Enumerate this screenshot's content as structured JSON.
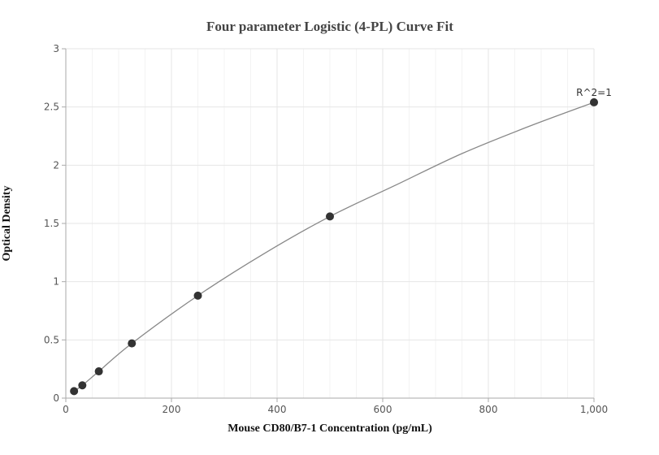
{
  "chart_data": {
    "type": "scatter",
    "title": "Four parameter Logistic (4-PL) Curve Fit",
    "xlabel": "Mouse CD80/B7-1 Concentration (pg/mL)",
    "ylabel": "Optical Density",
    "xlim": [
      0,
      1000
    ],
    "ylim": [
      0,
      3
    ],
    "x_ticks": [
      0,
      200,
      400,
      600,
      800,
      1000
    ],
    "x_tick_labels": [
      "0",
      "200",
      "400",
      "600",
      "800",
      "1,000"
    ],
    "y_ticks": [
      0,
      0.5,
      1,
      1.5,
      2,
      2.5,
      3
    ],
    "y_tick_labels": [
      "0",
      "0.5",
      "1",
      "1.5",
      "2",
      "2.5",
      "3"
    ],
    "grid": true,
    "series": [
      {
        "points": [
          {
            "x": 15.6,
            "y": 0.06
          },
          {
            "x": 31.25,
            "y": 0.11
          },
          {
            "x": 62.5,
            "y": 0.23
          },
          {
            "x": 125,
            "y": 0.47
          },
          {
            "x": 250,
            "y": 0.88
          },
          {
            "x": 500,
            "y": 1.56
          },
          {
            "x": 1000,
            "y": 2.54
          }
        ],
        "color": "#333333"
      }
    ],
    "fit_curve": {
      "type": "4-PL",
      "color": "#888888",
      "points": [
        {
          "x": 15.6,
          "y": 0.06
        },
        {
          "x": 31.25,
          "y": 0.11
        },
        {
          "x": 62.5,
          "y": 0.23
        },
        {
          "x": 125,
          "y": 0.47
        },
        {
          "x": 250,
          "y": 0.88
        },
        {
          "x": 375,
          "y": 1.24
        },
        {
          "x": 500,
          "y": 1.56
        },
        {
          "x": 625,
          "y": 1.83
        },
        {
          "x": 750,
          "y": 2.1
        },
        {
          "x": 875,
          "y": 2.33
        },
        {
          "x": 1000,
          "y": 2.54
        }
      ]
    },
    "annotations": [
      {
        "text": "R^2=1",
        "x": 1000,
        "y": 2.54
      }
    ]
  }
}
